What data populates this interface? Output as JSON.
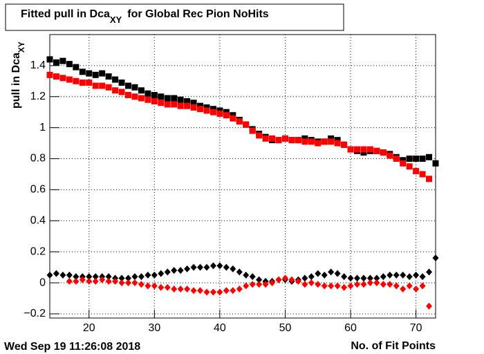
{
  "chart_data": {
    "type": "scatter",
    "title": {
      "main": "Fitted pull in Dca",
      "sub": "XY",
      "rest": "for Global Rec Pion NoHits"
    },
    "x_label": "No. of Fit Points",
    "y_label": {
      "main": "pull in Dca",
      "sub": "XY"
    },
    "timestamp": "Wed Sep 19 11:26:08 2018",
    "x": [
      14,
      15,
      16,
      17,
      18,
      19,
      20,
      21,
      22,
      23,
      24,
      25,
      26,
      27,
      28,
      29,
      30,
      31,
      32,
      33,
      34,
      35,
      36,
      37,
      38,
      39,
      40,
      41,
      42,
      43,
      44,
      45,
      46,
      47,
      48,
      49,
      50,
      51,
      52,
      53,
      54,
      55,
      56,
      57,
      58,
      59,
      60,
      61,
      62,
      63,
      64,
      65,
      66,
      67,
      68,
      69,
      70,
      71,
      72,
      73
    ],
    "series": [
      {
        "color": "#000000",
        "marker": "square",
        "values": [
          1.44,
          1.42,
          1.43,
          1.41,
          1.39,
          1.36,
          1.35,
          1.34,
          1.35,
          1.33,
          1.31,
          1.29,
          1.27,
          1.26,
          1.24,
          1.22,
          1.21,
          1.2,
          1.19,
          1.19,
          1.18,
          1.17,
          1.16,
          1.14,
          1.13,
          1.12,
          1.11,
          1.1,
          1.08,
          1.05,
          1.02,
          0.99,
          0.96,
          0.94,
          0.92,
          0.92,
          0.93,
          0.92,
          0.92,
          0.93,
          0.92,
          0.91,
          0.91,
          0.93,
          0.92,
          0.89,
          0.86,
          0.85,
          0.84,
          0.85,
          0.85,
          0.84,
          0.83,
          0.81,
          0.79,
          0.8,
          0.8,
          0.8,
          0.81,
          0.77
        ]
      },
      {
        "color": "#ff0000",
        "marker": "square",
        "values": [
          1.34,
          1.33,
          1.32,
          1.31,
          1.3,
          1.29,
          1.29,
          1.27,
          1.27,
          1.26,
          1.24,
          1.23,
          1.21,
          1.2,
          1.19,
          1.18,
          1.17,
          1.16,
          1.15,
          1.15,
          1.14,
          1.14,
          1.13,
          1.12,
          1.11,
          1.1,
          1.09,
          1.08,
          1.06,
          1.04,
          1.02,
          0.98,
          0.95,
          0.93,
          0.93,
          0.92,
          0.93,
          0.92,
          0.92,
          0.91,
          0.91,
          0.9,
          0.91,
          0.91,
          0.9,
          0.89,
          0.86,
          0.86,
          0.86,
          0.86,
          0.85,
          0.84,
          0.82,
          0.8,
          0.77,
          0.75,
          0.72,
          0.7,
          0.67,
          null
        ]
      },
      {
        "color": "#000000",
        "marker": "diamond",
        "values": [
          0.05,
          0.06,
          0.05,
          0.05,
          0.04,
          0.04,
          0.04,
          0.04,
          0.04,
          0.04,
          0.03,
          0.03,
          0.03,
          0.04,
          0.04,
          0.05,
          0.05,
          0.06,
          0.07,
          0.08,
          0.08,
          0.09,
          0.1,
          0.1,
          0.1,
          0.11,
          0.11,
          0.1,
          0.09,
          0.07,
          0.05,
          0.04,
          0.02,
          0.01,
          0.01,
          0.02,
          0.02,
          0.01,
          0.02,
          0.03,
          0.04,
          0.06,
          0.05,
          0.07,
          0.06,
          0.04,
          0.03,
          0.03,
          0.03,
          0.03,
          0.03,
          0.04,
          0.05,
          0.05,
          0.05,
          0.04,
          0.05,
          0.04,
          0.07,
          0.16
        ]
      },
      {
        "color": "#ff0000",
        "marker": "diamond",
        "values": [
          null,
          null,
          null,
          0.01,
          0.01,
          0.02,
          0.01,
          0.01,
          0.02,
          0.01,
          0.01,
          0.0,
          0.0,
          0.0,
          -0.01,
          -0.02,
          -0.02,
          -0.03,
          -0.03,
          -0.04,
          -0.04,
          -0.04,
          -0.05,
          -0.05,
          -0.06,
          -0.06,
          -0.06,
          -0.05,
          -0.05,
          -0.04,
          -0.02,
          -0.01,
          -0.01,
          -0.01,
          0.0,
          0.02,
          0.03,
          0.02,
          0.01,
          -0.01,
          0.0,
          -0.01,
          -0.02,
          -0.02,
          -0.02,
          -0.03,
          -0.02,
          -0.01,
          -0.01,
          0.0,
          0.0,
          -0.01,
          -0.01,
          -0.02,
          -0.04,
          -0.02,
          -0.04,
          -0.02,
          -0.15,
          null
        ]
      }
    ],
    "xlim": [
      14,
      73
    ],
    "xticks": [
      20,
      30,
      40,
      50,
      60,
      70
    ],
    "ylim": [
      -0.227,
      1.6
    ],
    "yticks": [
      {
        "value": -0.2,
        "label": "−0.2"
      },
      0,
      0.2,
      0.4,
      0.6,
      0.8,
      1,
      1.2,
      1.4
    ],
    "grid": true
  }
}
